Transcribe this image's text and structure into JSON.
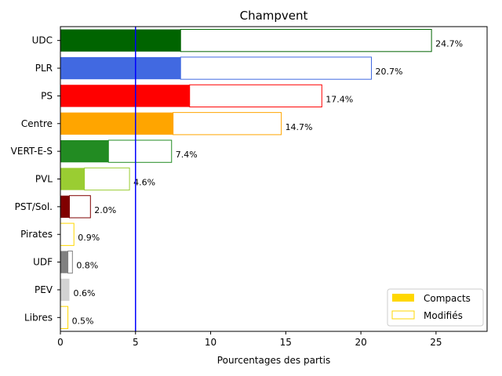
{
  "chart_data": {
    "type": "bar",
    "orientation": "horizontal",
    "title": "Champvent",
    "xlabel": "Pourcentages des partis",
    "ylabel": "",
    "xlim": [
      0,
      28.4
    ],
    "xticks": [
      0,
      5,
      10,
      15,
      20,
      25
    ],
    "grid": false,
    "legend_placement": "bottom-right",
    "reference_line": {
      "x": 5,
      "color": "#0000ff"
    },
    "series": [
      {
        "name": "Compacts",
        "style": "filled",
        "legend_color": "#ffd700"
      },
      {
        "name": "Modifiés",
        "style": "outline",
        "legend_color": "#ffd700"
      }
    ],
    "categories": [
      "UDC",
      "PLR",
      "PS",
      "Centre",
      "VERT-E-S",
      "PVL",
      "PST/Sol.",
      "Pirates",
      "UDF",
      "PEV",
      "Libres"
    ],
    "colors": [
      "#006400",
      "#4169e1",
      "#ff0000",
      "#ffa500",
      "#228b22",
      "#9acd32",
      "#800000",
      "#ffd700",
      "#808080",
      "#d3d3d3",
      "#ffd700"
    ],
    "compacts": [
      8.0,
      8.0,
      8.6,
      7.5,
      3.2,
      1.6,
      0.6,
      0.0,
      0.5,
      0.6,
      0.0
    ],
    "modifies": [
      16.7,
      12.7,
      8.8,
      7.2,
      4.2,
      3.0,
      1.4,
      0.9,
      0.3,
      0.0,
      0.5
    ],
    "totals": [
      24.7,
      20.7,
      17.4,
      14.7,
      7.4,
      4.6,
      2.0,
      0.9,
      0.8,
      0.6,
      0.5
    ],
    "total_labels": [
      "24.7%",
      "20.7%",
      "17.4%",
      "14.7%",
      "7.4%",
      "4.6%",
      "2.0%",
      "0.9%",
      "0.8%",
      "0.6%",
      "0.5%"
    ]
  }
}
